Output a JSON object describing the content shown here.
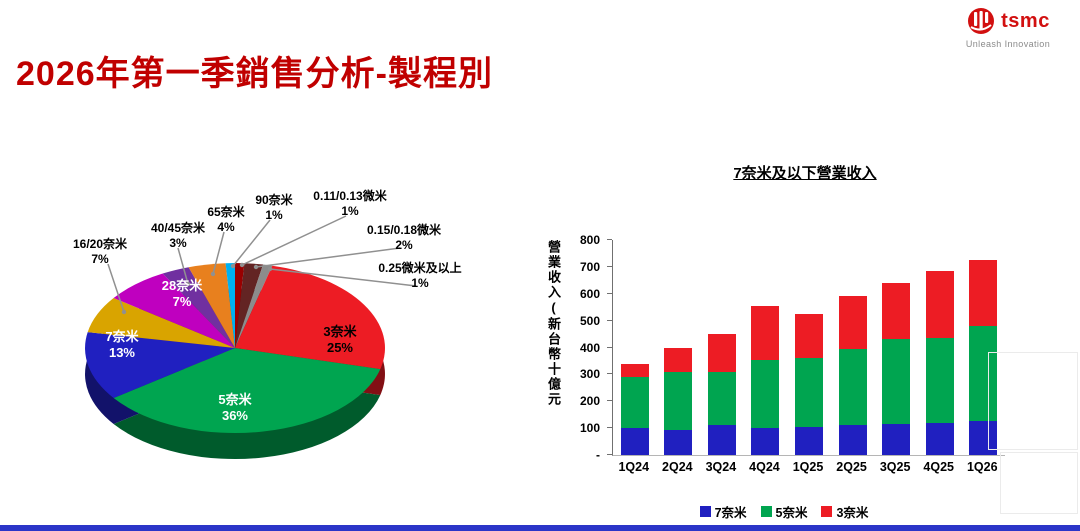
{
  "slide": {
    "title": "2026年第一季銷售分析-製程別"
  },
  "logo": {
    "brand": "tsmc",
    "tagline": "Unleash Innovation"
  },
  "colors": {
    "title_red": "#C00000",
    "brand_red": "#D21010",
    "bottom_bar_blue": "#2B35C8"
  },
  "chart_data": [
    {
      "type": "pie",
      "name": "wafer-revenue-by-process",
      "unit": "percent",
      "start_angle_deg": -90,
      "direction": "clockwise",
      "slices": [
        {
          "label": "0.11/0.13微米",
          "value": 1,
          "pct": "1%",
          "color": "#990000"
        },
        {
          "label": "0.15/0.18微米",
          "value": 2,
          "pct": "2%",
          "color": "#632423"
        },
        {
          "label": "0.25微米及以上",
          "value": 1,
          "pct": "1%",
          "color": "#8C8C8C"
        },
        {
          "label": "3奈米",
          "value": 25,
          "pct": "25%",
          "color": "#ED1C24"
        },
        {
          "label": "5奈米",
          "value": 36,
          "pct": "36%",
          "color": "#00A550"
        },
        {
          "label": "7奈米",
          "value": 13,
          "pct": "13%",
          "color": "#2020C0"
        },
        {
          "label": "16/20奈米",
          "value": 7,
          "pct": "7%",
          "color": "#D9A400"
        },
        {
          "label": "28奈米",
          "value": 7,
          "pct": "7%",
          "color": "#BF00BF"
        },
        {
          "label": "40/45奈米",
          "value": 3,
          "pct": "3%",
          "color": "#7030A0"
        },
        {
          "label": "65奈米",
          "value": 4,
          "pct": "4%",
          "color": "#E8801E"
        },
        {
          "label": "90奈米",
          "value": 1,
          "pct": "1%",
          "color": "#00B0F0"
        }
      ]
    },
    {
      "type": "bar",
      "stacked": true,
      "title": "7奈米及以下營業收入",
      "ylabel": "營業收入(新台幣十億元",
      "categories": [
        "1Q24",
        "2Q24",
        "3Q24",
        "4Q24",
        "1Q25",
        "2Q25",
        "3Q25",
        "4Q25",
        "1Q26"
      ],
      "series": [
        {
          "name": "7奈米",
          "color": "#2020C0",
          "values": [
            100,
            95,
            110,
            100,
            105,
            110,
            115,
            120,
            125
          ]
        },
        {
          "name": "5奈米",
          "color": "#00A550",
          "values": [
            190,
            215,
            200,
            255,
            255,
            285,
            315,
            315,
            355
          ]
        },
        {
          "name": "3奈米",
          "color": "#ED1C24",
          "values": [
            50,
            90,
            140,
            200,
            165,
            195,
            210,
            250,
            245
          ]
        }
      ],
      "totals": [
        340,
        400,
        450,
        555,
        525,
        590,
        640,
        685,
        725
      ],
      "ylim": [
        0,
        800
      ],
      "ytick_labels": [
        "-",
        "100",
        "200",
        "300",
        "400",
        "500",
        "600",
        "700",
        "800"
      ],
      "legend_position": "bottom",
      "grid": false
    }
  ]
}
